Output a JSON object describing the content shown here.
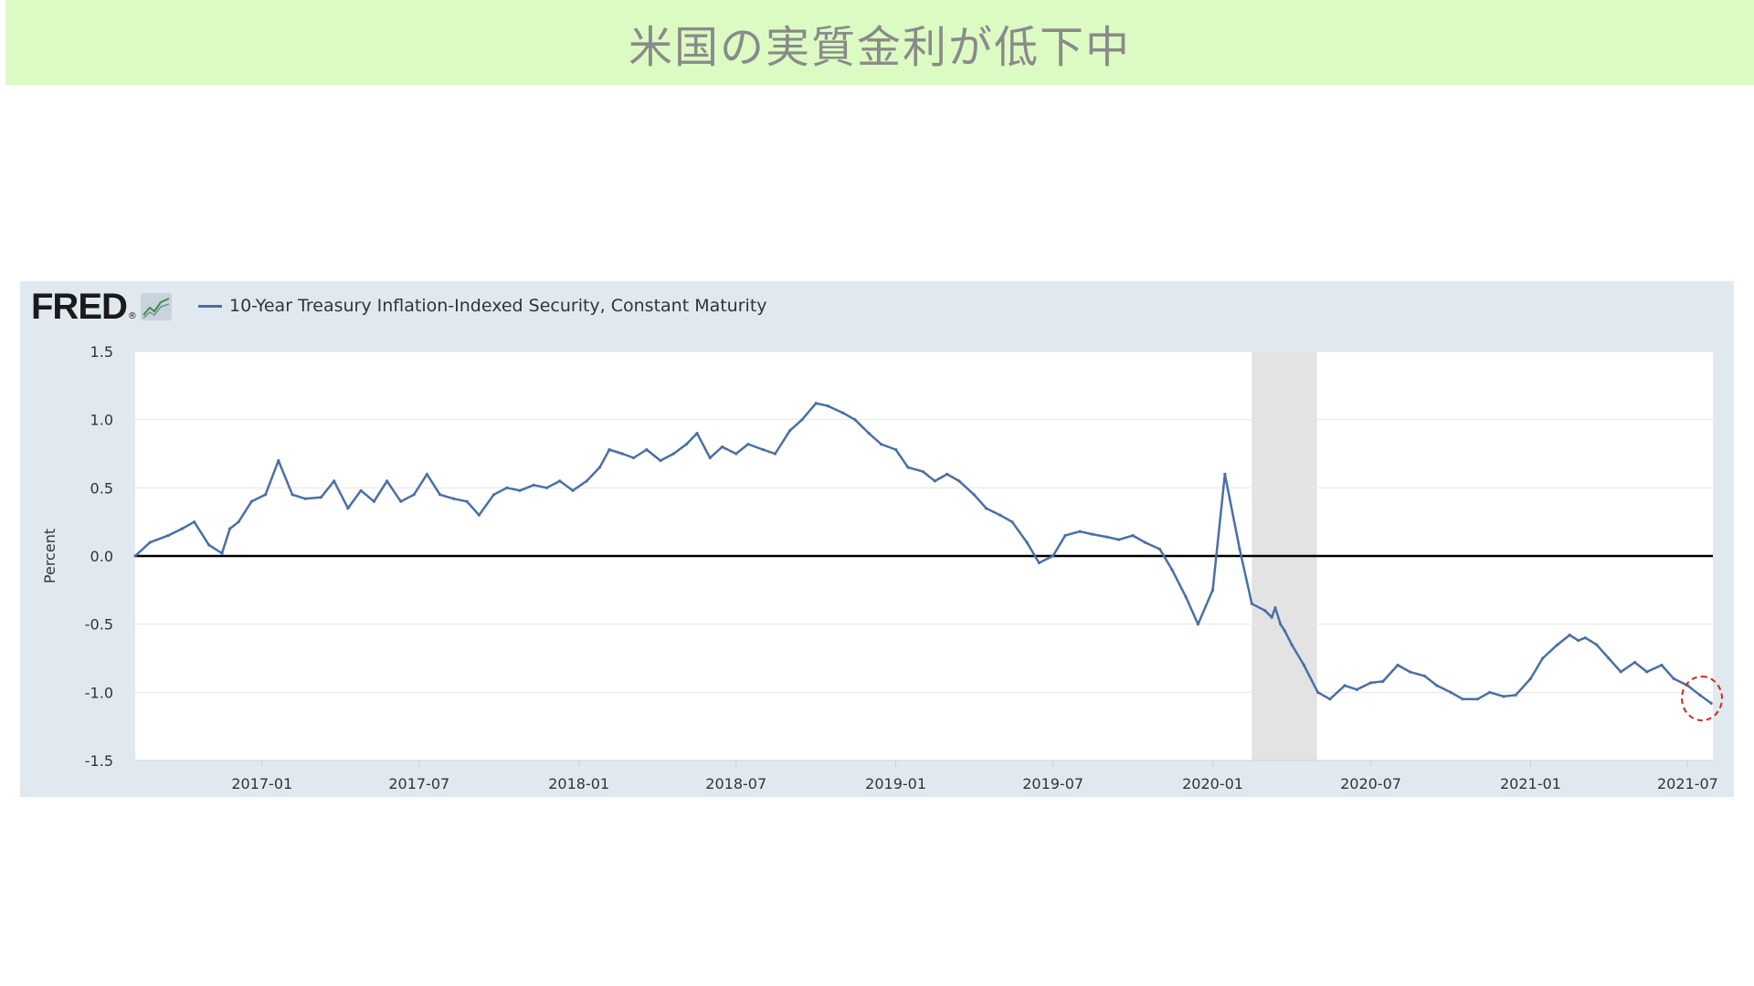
{
  "banner": {
    "title": "米国の実質金利が低下中"
  },
  "brand": {
    "logo_text": "FRED",
    "logo_mark": "®",
    "icon": "chart-line-icon"
  },
  "colors": {
    "banner_bg": "#dbfbc3",
    "panel_bg": "#e1e9f0",
    "series": "#4a6fa5",
    "recession": "#e3e3e3",
    "annotation": "#d12a1e"
  },
  "chart_data": {
    "type": "line",
    "title": "",
    "ylabel": "Percent",
    "xlabel": "",
    "ylim": [
      -1.5,
      1.5
    ],
    "xlim": [
      "2016-08-08",
      "2021-07-30"
    ],
    "yticks": [
      1.5,
      1.0,
      0.5,
      0.0,
      -0.5,
      -1.0,
      -1.5
    ],
    "ytick_labels": [
      "1.5",
      "1.0",
      "0.5",
      "0.0",
      "-0.5",
      "-1.0",
      "-1.5"
    ],
    "xticks": [
      "2017-01",
      "2017-07",
      "2018-01",
      "2018-07",
      "2019-01",
      "2019-07",
      "2020-01",
      "2020-07",
      "2021-01",
      "2021-07"
    ],
    "grid": true,
    "zero_line": true,
    "recession_band": [
      "2020-02-15",
      "2020-04-30"
    ],
    "legend_position": "top-left",
    "series": [
      {
        "name": "10-Year Treasury Inflation-Indexed Security, Constant Maturity",
        "x": [
          "2016-08-08",
          "2016-08-25",
          "2016-09-15",
          "2016-10-01",
          "2016-10-15",
          "2016-11-01",
          "2016-11-16",
          "2016-11-25",
          "2016-12-05",
          "2016-12-20",
          "2017-01-05",
          "2017-01-20",
          "2017-02-05",
          "2017-02-20",
          "2017-03-10",
          "2017-03-25",
          "2017-04-10",
          "2017-04-25",
          "2017-05-10",
          "2017-05-25",
          "2017-06-10",
          "2017-06-25",
          "2017-07-10",
          "2017-07-25",
          "2017-08-10",
          "2017-08-25",
          "2017-09-08",
          "2017-09-25",
          "2017-10-10",
          "2017-10-25",
          "2017-11-10",
          "2017-11-25",
          "2017-12-10",
          "2017-12-25",
          "2018-01-10",
          "2018-01-25",
          "2018-02-05",
          "2018-02-20",
          "2018-03-05",
          "2018-03-20",
          "2018-04-05",
          "2018-04-20",
          "2018-05-05",
          "2018-05-17",
          "2018-06-01",
          "2018-06-15",
          "2018-07-01",
          "2018-07-15",
          "2018-08-01",
          "2018-08-15",
          "2018-09-01",
          "2018-09-15",
          "2018-10-01",
          "2018-10-15",
          "2018-11-01",
          "2018-11-15",
          "2018-12-01",
          "2018-12-15",
          "2019-01-01",
          "2019-01-15",
          "2019-02-01",
          "2019-02-15",
          "2019-03-01",
          "2019-03-15",
          "2019-04-01",
          "2019-04-15",
          "2019-05-01",
          "2019-05-15",
          "2019-06-01",
          "2019-06-15",
          "2019-07-01",
          "2019-07-15",
          "2019-08-01",
          "2019-08-15",
          "2019-09-01",
          "2019-09-15",
          "2019-10-01",
          "2019-10-15",
          "2019-11-01",
          "2019-11-15",
          "2019-12-01",
          "2019-12-15",
          "2020-01-01",
          "2020-01-15",
          "2020-02-01",
          "2020-02-15",
          "2020-03-01",
          "2020-03-09",
          "2020-03-13",
          "2020-03-19",
          "2020-03-24",
          "2020-04-01",
          "2020-04-15",
          "2020-05-01",
          "2020-05-15",
          "2020-06-01",
          "2020-06-15",
          "2020-07-01",
          "2020-07-15",
          "2020-08-01",
          "2020-08-15",
          "2020-09-01",
          "2020-09-15",
          "2020-10-01",
          "2020-10-15",
          "2020-11-01",
          "2020-11-15",
          "2020-12-01",
          "2020-12-15",
          "2021-01-01",
          "2021-01-15",
          "2021-02-01",
          "2021-02-15",
          "2021-02-25",
          "2021-03-05",
          "2021-03-18",
          "2021-04-01",
          "2021-04-15",
          "2021-05-01",
          "2021-05-15",
          "2021-06-01",
          "2021-06-15",
          "2021-07-01",
          "2021-07-15",
          "2021-07-28"
        ],
        "y": [
          0.0,
          0.1,
          0.15,
          0.2,
          0.25,
          0.08,
          0.02,
          0.2,
          0.25,
          0.4,
          0.45,
          0.7,
          0.45,
          0.42,
          0.43,
          0.55,
          0.35,
          0.48,
          0.4,
          0.55,
          0.4,
          0.45,
          0.6,
          0.45,
          0.42,
          0.4,
          0.3,
          0.45,
          0.5,
          0.48,
          0.52,
          0.5,
          0.55,
          0.48,
          0.55,
          0.65,
          0.78,
          0.75,
          0.72,
          0.78,
          0.7,
          0.75,
          0.82,
          0.9,
          0.72,
          0.8,
          0.75,
          0.82,
          0.78,
          0.75,
          0.92,
          1.0,
          1.12,
          1.1,
          1.05,
          1.0,
          0.9,
          0.82,
          0.78,
          0.65,
          0.62,
          0.55,
          0.6,
          0.55,
          0.45,
          0.35,
          0.3,
          0.25,
          0.1,
          -0.05,
          0.0,
          0.15,
          0.18,
          0.16,
          0.14,
          0.12,
          0.15,
          0.1,
          0.05,
          -0.1,
          -0.3,
          -0.5,
          -0.25,
          0.6,
          0.05,
          -0.35,
          -0.4,
          -0.45,
          -0.38,
          -0.5,
          -0.55,
          -0.65,
          -0.8,
          -1.0,
          -1.05,
          -0.95,
          -0.98,
          -0.93,
          -0.92,
          -0.8,
          -0.85,
          -0.88,
          -0.95,
          -1.0,
          -1.05,
          -1.05,
          -1.0,
          -1.03,
          -1.02,
          -0.9,
          -0.75,
          -0.65,
          -0.58,
          -0.62,
          -0.6,
          -0.65,
          -0.75,
          -0.85,
          -0.78,
          -0.85,
          -0.8,
          -0.9,
          -0.95,
          -1.02,
          -1.08
        ]
      }
    ]
  }
}
